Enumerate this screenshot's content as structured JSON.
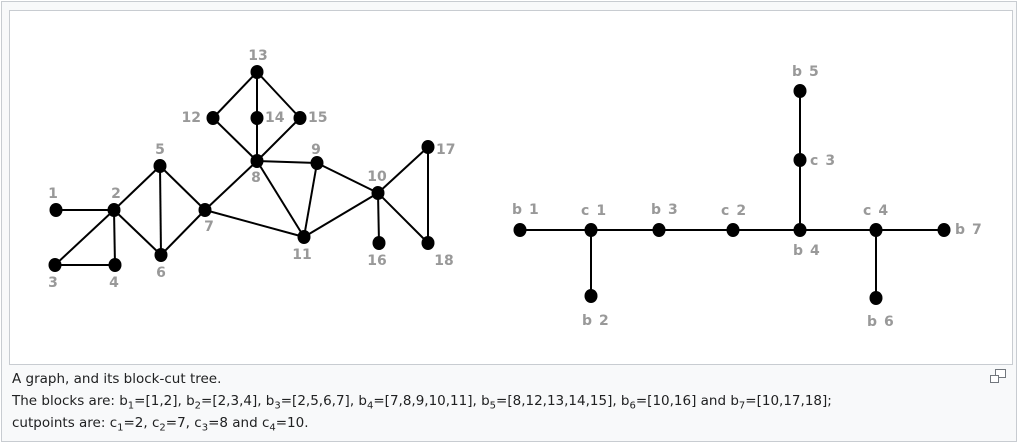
{
  "graph": {
    "nodes": [
      {
        "id": "1"
      },
      {
        "id": "2"
      },
      {
        "id": "3"
      },
      {
        "id": "4"
      },
      {
        "id": "5"
      },
      {
        "id": "6"
      },
      {
        "id": "7"
      },
      {
        "id": "8"
      },
      {
        "id": "9"
      },
      {
        "id": "10"
      },
      {
        "id": "11"
      },
      {
        "id": "12"
      },
      {
        "id": "13"
      },
      {
        "id": "14"
      },
      {
        "id": "15"
      },
      {
        "id": "16"
      },
      {
        "id": "17"
      },
      {
        "id": "18"
      }
    ],
    "edges": [
      [
        "1",
        "2"
      ],
      [
        "2",
        "3"
      ],
      [
        "2",
        "4"
      ],
      [
        "3",
        "4"
      ],
      [
        "2",
        "5"
      ],
      [
        "2",
        "6"
      ],
      [
        "5",
        "6"
      ],
      [
        "5",
        "7"
      ],
      [
        "6",
        "7"
      ],
      [
        "7",
        "8"
      ],
      [
        "7",
        "11"
      ],
      [
        "8",
        "9"
      ],
      [
        "8",
        "11"
      ],
      [
        "9",
        "11"
      ],
      [
        "9",
        "10"
      ],
      [
        "10",
        "11"
      ],
      [
        "8",
        "12"
      ],
      [
        "8",
        "13"
      ],
      [
        "8",
        "14"
      ],
      [
        "8",
        "15"
      ],
      [
        "12",
        "13"
      ],
      [
        "13",
        "14"
      ],
      [
        "13",
        "15"
      ],
      [
        "10",
        "16"
      ],
      [
        "10",
        "17"
      ],
      [
        "10",
        "18"
      ],
      [
        "17",
        "18"
      ]
    ]
  },
  "tree": {
    "nodes": [
      {
        "id": "b1",
        "prefix": "b",
        "num": "1"
      },
      {
        "id": "c1",
        "prefix": "c",
        "num": "1"
      },
      {
        "id": "b2",
        "prefix": "b",
        "num": "2"
      },
      {
        "id": "b3",
        "prefix": "b",
        "num": "3"
      },
      {
        "id": "c2",
        "prefix": "c",
        "num": "2"
      },
      {
        "id": "b4",
        "prefix": "b",
        "num": "4"
      },
      {
        "id": "c3",
        "prefix": "c",
        "num": "3"
      },
      {
        "id": "b5",
        "prefix": "b",
        "num": "5"
      },
      {
        "id": "c4",
        "prefix": "c",
        "num": "4"
      },
      {
        "id": "b6",
        "prefix": "b",
        "num": "6"
      },
      {
        "id": "b7",
        "prefix": "b",
        "num": "7"
      }
    ],
    "edges": [
      [
        "b1",
        "c1"
      ],
      [
        "c1",
        "b2"
      ],
      [
        "c1",
        "b3"
      ],
      [
        "b3",
        "c2"
      ],
      [
        "c2",
        "b4"
      ],
      [
        "b4",
        "c3"
      ],
      [
        "c3",
        "b5"
      ],
      [
        "b4",
        "c4"
      ],
      [
        "c4",
        "b6"
      ],
      [
        "c4",
        "b7"
      ]
    ]
  },
  "caption": {
    "line1": "A graph, and its block-cut tree.",
    "line2_parts": [
      "The blocks are: b",
      "1",
      "=[1,2], b",
      "2",
      "=[2,3,4], b",
      "3",
      "=[2,5,6,7], b",
      "4",
      "=[7,8,9,10,11], b",
      "5",
      "=[8,12,13,14,15], b",
      "6",
      "=[10,16] and b",
      "7",
      "=[10,17,18];"
    ],
    "line3_parts": [
      "cutpoints are: c",
      "1",
      "=2, c",
      "2",
      "=7, c",
      "3",
      "=8 and c",
      "4",
      "=10."
    ]
  },
  "colors": {
    "node": "#000000",
    "edge": "#000000",
    "label": "#999999",
    "frame_border": "#c8ccd1",
    "background": "#f8f9fa"
  },
  "icons": {
    "magnify": "enlarge-icon"
  }
}
